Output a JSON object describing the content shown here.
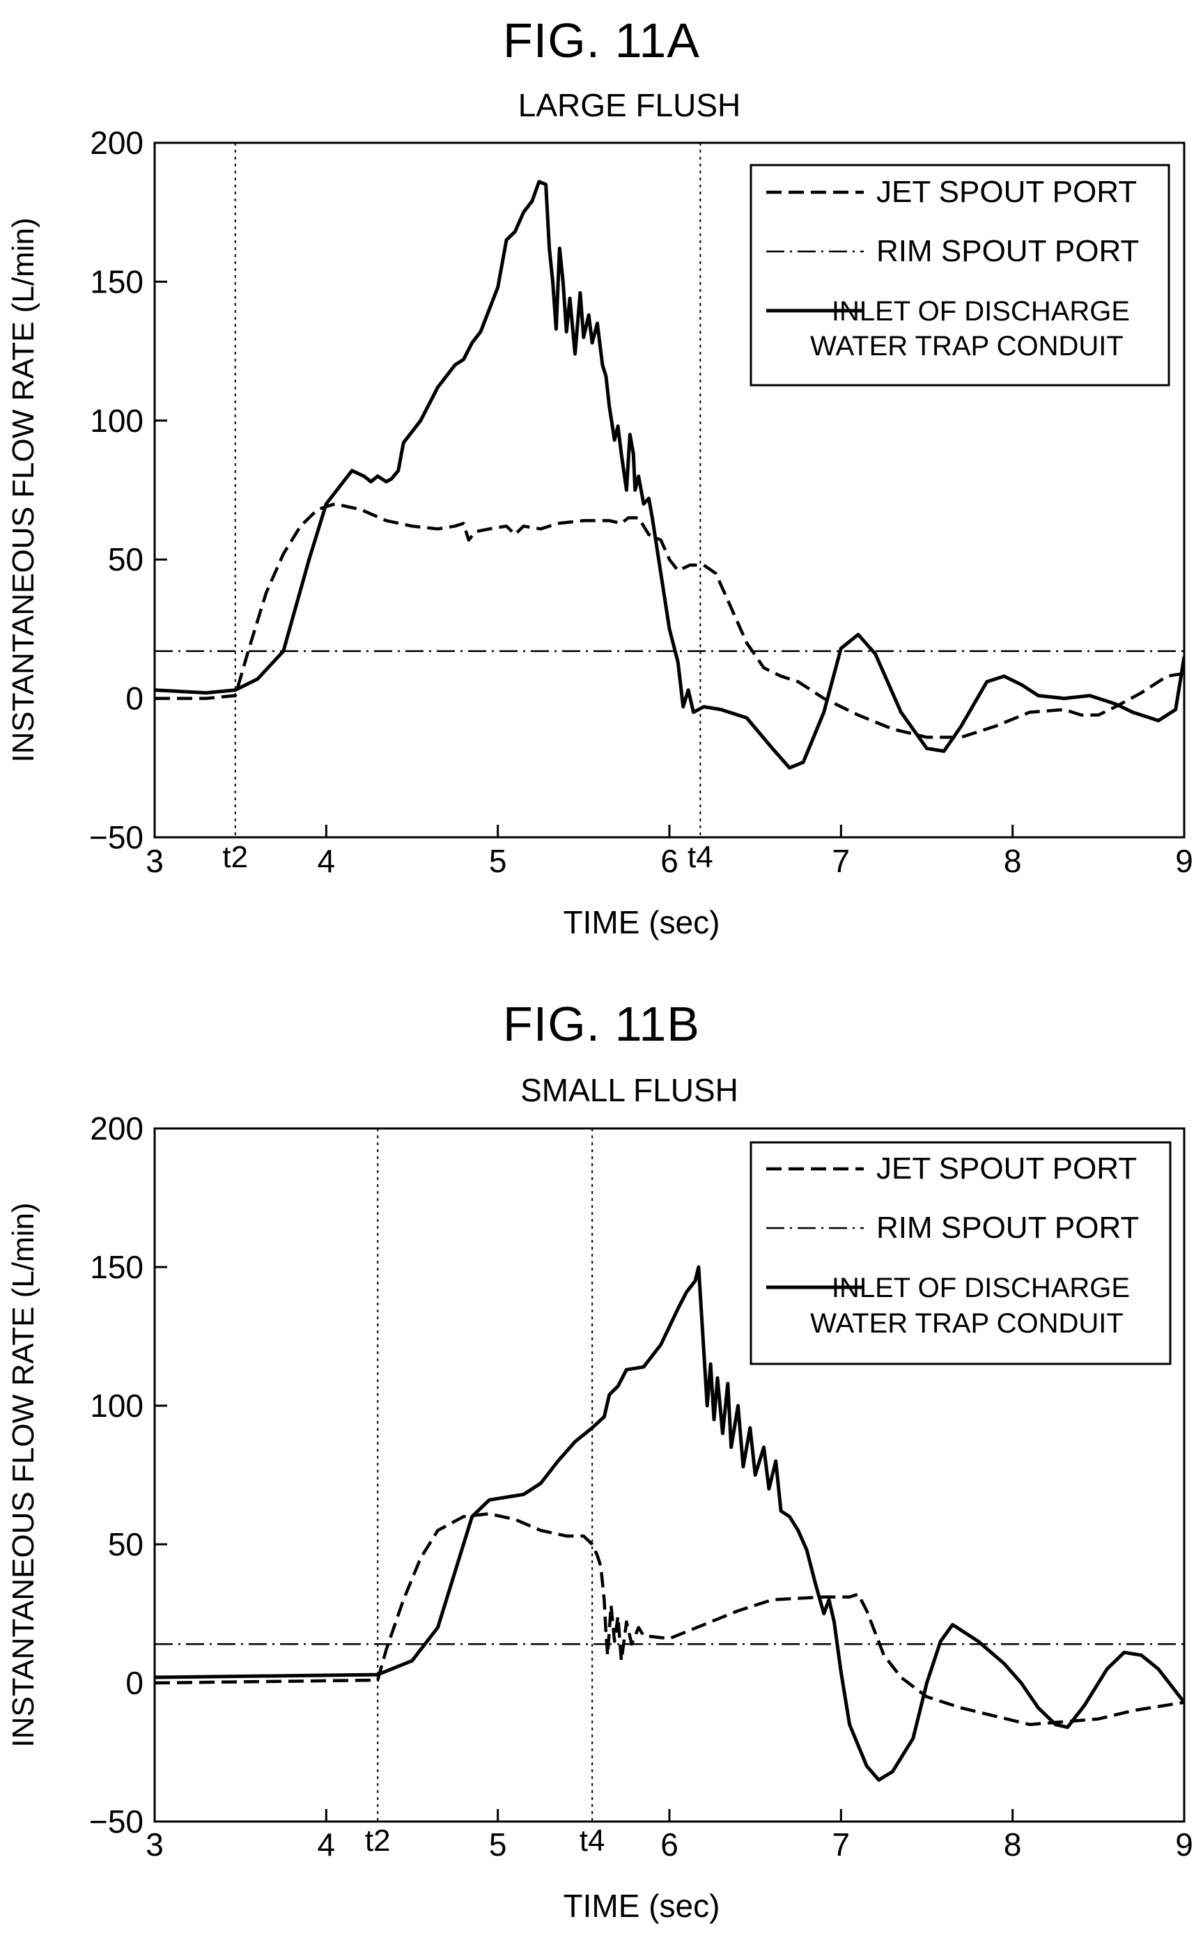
{
  "chart_data": [
    {
      "type": "line",
      "figure_label": "FIG. 11A",
      "title": "LARGE FLUSH",
      "xlabel": "TIME (sec)",
      "ylabel": "INSTANTANEOUS FLOW RATE (L/min)",
      "xlim": [
        3,
        9
      ],
      "ylim": [
        -50,
        200
      ],
      "xticks": [
        "3",
        "4",
        "5",
        "6",
        "7",
        "8",
        "9"
      ],
      "yticks": [
        "200",
        "150",
        "100",
        "50",
        "0",
        "−50"
      ],
      "markers": [
        {
          "label": "t2",
          "x": 3.47
        },
        {
          "label": "t4",
          "x": 6.18
        }
      ],
      "legend_placement": "top-right",
      "legend": [
        "JET SPOUT PORT",
        "RIM SPOUT PORT",
        "INLET OF DISCHARGE WATER TRAP CONDUIT"
      ],
      "series": [
        {
          "name": "JET SPOUT PORT",
          "style": "dashed",
          "points": [
            [
              3.0,
              0
            ],
            [
              3.3,
              0
            ],
            [
              3.47,
              1
            ],
            [
              3.55,
              18
            ],
            [
              3.65,
              38
            ],
            [
              3.75,
              52
            ],
            [
              3.85,
              62
            ],
            [
              3.95,
              68
            ],
            [
              4.05,
              70
            ],
            [
              4.2,
              68
            ],
            [
              4.35,
              64
            ],
            [
              4.5,
              62
            ],
            [
              4.65,
              61
            ],
            [
              4.75,
              62
            ],
            [
              4.8,
              63
            ],
            [
              4.83,
              57
            ],
            [
              4.87,
              60
            ],
            [
              4.95,
              61
            ],
            [
              5.05,
              62
            ],
            [
              5.1,
              59
            ],
            [
              5.15,
              62
            ],
            [
              5.25,
              61
            ],
            [
              5.35,
              63
            ],
            [
              5.5,
              64
            ],
            [
              5.65,
              64
            ],
            [
              5.72,
              63
            ],
            [
              5.76,
              65
            ],
            [
              5.82,
              65
            ],
            [
              5.88,
              59
            ],
            [
              5.95,
              57
            ],
            [
              6.0,
              50
            ],
            [
              6.05,
              46
            ],
            [
              6.12,
              48
            ],
            [
              6.2,
              48
            ],
            [
              6.27,
              45
            ],
            [
              6.35,
              34
            ],
            [
              6.45,
              20
            ],
            [
              6.55,
              11
            ],
            [
              6.65,
              8
            ],
            [
              6.75,
              6
            ],
            [
              6.9,
              0
            ],
            [
              7.1,
              -6
            ],
            [
              7.3,
              -11
            ],
            [
              7.5,
              -14
            ],
            [
              7.7,
              -14
            ],
            [
              7.9,
              -10
            ],
            [
              8.1,
              -5
            ],
            [
              8.3,
              -4
            ],
            [
              8.4,
              -6
            ],
            [
              8.5,
              -6
            ],
            [
              8.6,
              -3
            ],
            [
              8.75,
              2
            ],
            [
              8.9,
              8
            ],
            [
              9.0,
              9
            ]
          ]
        },
        {
          "name": "RIM SPOUT PORT",
          "style": "dashdot",
          "points": [
            [
              3.0,
              17
            ],
            [
              9.0,
              17
            ]
          ]
        },
        {
          "name": "INLET OF DISCHARGE WATER TRAP CONDUIT",
          "style": "solid",
          "points": [
            [
              3.0,
              3
            ],
            [
              3.3,
              2
            ],
            [
              3.47,
              3
            ],
            [
              3.6,
              7
            ],
            [
              3.75,
              17
            ],
            [
              3.9,
              50
            ],
            [
              4.0,
              70
            ],
            [
              4.1,
              78
            ],
            [
              4.15,
              82
            ],
            [
              4.22,
              80
            ],
            [
              4.26,
              78
            ],
            [
              4.3,
              80
            ],
            [
              4.35,
              78
            ],
            [
              4.38,
              79
            ],
            [
              4.42,
              82
            ],
            [
              4.45,
              92
            ],
            [
              4.55,
              100
            ],
            [
              4.65,
              112
            ],
            [
              4.75,
              120
            ],
            [
              4.8,
              122
            ],
            [
              4.85,
              128
            ],
            [
              4.9,
              132
            ],
            [
              5.0,
              148
            ],
            [
              5.05,
              165
            ],
            [
              5.1,
              168
            ],
            [
              5.15,
              175
            ],
            [
              5.2,
              179
            ],
            [
              5.24,
              186
            ],
            [
              5.28,
              185
            ],
            [
              5.3,
              162
            ],
            [
              5.32,
              150
            ],
            [
              5.34,
              133
            ],
            [
              5.36,
              162
            ],
            [
              5.38,
              150
            ],
            [
              5.4,
              132
            ],
            [
              5.42,
              144
            ],
            [
              5.45,
              124
            ],
            [
              5.48,
              146
            ],
            [
              5.5,
              130
            ],
            [
              5.53,
              138
            ],
            [
              5.55,
              128
            ],
            [
              5.58,
              135
            ],
            [
              5.61,
              120
            ],
            [
              5.63,
              116
            ],
            [
              5.65,
              105
            ],
            [
              5.68,
              93
            ],
            [
              5.7,
              98
            ],
            [
              5.72,
              88
            ],
            [
              5.75,
              75
            ],
            [
              5.77,
              95
            ],
            [
              5.79,
              88
            ],
            [
              5.8,
              75
            ],
            [
              5.82,
              80
            ],
            [
              5.85,
              70
            ],
            [
              5.88,
              72
            ],
            [
              5.9,
              65
            ],
            [
              5.95,
              45
            ],
            [
              6.0,
              25
            ],
            [
              6.05,
              13
            ],
            [
              6.08,
              -3
            ],
            [
              6.11,
              3
            ],
            [
              6.14,
              -5
            ],
            [
              6.2,
              -3
            ],
            [
              6.3,
              -4
            ],
            [
              6.45,
              -7
            ],
            [
              6.6,
              -18
            ],
            [
              6.7,
              -25
            ],
            [
              6.78,
              -23
            ],
            [
              6.9,
              -5
            ],
            [
              7.0,
              18
            ],
            [
              7.1,
              23
            ],
            [
              7.2,
              16
            ],
            [
              7.35,
              -5
            ],
            [
              7.5,
              -18
            ],
            [
              7.6,
              -19
            ],
            [
              7.7,
              -10
            ],
            [
              7.85,
              6
            ],
            [
              7.95,
              8
            ],
            [
              8.05,
              5
            ],
            [
              8.15,
              1
            ],
            [
              8.3,
              0
            ],
            [
              8.45,
              1
            ],
            [
              8.6,
              -2
            ],
            [
              8.7,
              -5
            ],
            [
              8.85,
              -8
            ],
            [
              8.95,
              -4
            ],
            [
              9.0,
              15
            ]
          ]
        }
      ]
    },
    {
      "type": "line",
      "figure_label": "FIG. 11B",
      "title": "SMALL FLUSH",
      "xlabel": "TIME (sec)",
      "ylabel": "INSTANTANEOUS FLOW RATE (L/min)",
      "xlim": [
        3,
        9
      ],
      "ylim": [
        -50,
        200
      ],
      "xticks": [
        "3",
        "4",
        "5",
        "6",
        "7",
        "8",
        "9"
      ],
      "yticks": [
        "200",
        "150",
        "100",
        "50",
        "0",
        "−50"
      ],
      "markers": [
        {
          "label": "t2",
          "x": 4.3
        },
        {
          "label": "t4",
          "x": 5.55
        }
      ],
      "legend_placement": "top-right",
      "legend": [
        "JET SPOUT PORT",
        "RIM SPOUT PORT",
        "INLET OF DISCHARGE WATER TRAP CONDUIT"
      ],
      "series": [
        {
          "name": "JET SPOUT PORT",
          "style": "dashed",
          "points": [
            [
              3.0,
              0
            ],
            [
              4.3,
              1
            ],
            [
              4.35,
              12
            ],
            [
              4.45,
              30
            ],
            [
              4.55,
              45
            ],
            [
              4.65,
              55
            ],
            [
              4.8,
              60
            ],
            [
              4.95,
              61
            ],
            [
              5.1,
              59
            ],
            [
              5.25,
              55
            ],
            [
              5.4,
              53
            ],
            [
              5.5,
              53
            ],
            [
              5.55,
              50
            ],
            [
              5.58,
              46
            ],
            [
              5.6,
              42
            ],
            [
              5.62,
              30
            ],
            [
              5.63,
              18
            ],
            [
              5.64,
              10
            ],
            [
              5.66,
              28
            ],
            [
              5.68,
              15
            ],
            [
              5.7,
              24
            ],
            [
              5.72,
              8
            ],
            [
              5.75,
              22
            ],
            [
              5.78,
              14
            ],
            [
              5.82,
              20
            ],
            [
              5.85,
              17
            ],
            [
              6.0,
              16
            ],
            [
              6.2,
              21
            ],
            [
              6.4,
              26
            ],
            [
              6.6,
              30
            ],
            [
              6.9,
              31
            ],
            [
              7.05,
              31
            ],
            [
              7.1,
              32
            ],
            [
              7.15,
              26
            ],
            [
              7.25,
              10
            ],
            [
              7.35,
              2
            ],
            [
              7.5,
              -5
            ],
            [
              7.7,
              -9
            ],
            [
              7.9,
              -12
            ],
            [
              8.1,
              -15
            ],
            [
              8.3,
              -14
            ],
            [
              8.5,
              -13
            ],
            [
              8.7,
              -10
            ],
            [
              9.0,
              -7
            ]
          ]
        },
        {
          "name": "RIM SPOUT PORT",
          "style": "dashdot",
          "points": [
            [
              3.0,
              14
            ],
            [
              9.0,
              14
            ]
          ]
        },
        {
          "name": "INLET OF DISCHARGE WATER TRAP CONDUIT",
          "style": "solid",
          "points": [
            [
              3.0,
              2
            ],
            [
              4.3,
              3
            ],
            [
              4.5,
              8
            ],
            [
              4.65,
              20
            ],
            [
              4.75,
              40
            ],
            [
              4.85,
              60
            ],
            [
              4.95,
              66
            ],
            [
              5.05,
              67
            ],
            [
              5.15,
              68
            ],
            [
              5.25,
              72
            ],
            [
              5.35,
              80
            ],
            [
              5.45,
              87
            ],
            [
              5.55,
              92
            ],
            [
              5.62,
              96
            ],
            [
              5.65,
              104
            ],
            [
              5.7,
              107
            ],
            [
              5.75,
              113
            ],
            [
              5.85,
              114
            ],
            [
              5.95,
              122
            ],
            [
              6.05,
              135
            ],
            [
              6.1,
              141
            ],
            [
              6.15,
              145
            ],
            [
              6.17,
              150
            ],
            [
              6.2,
              120
            ],
            [
              6.22,
              100
            ],
            [
              6.24,
              115
            ],
            [
              6.26,
              95
            ],
            [
              6.28,
              110
            ],
            [
              6.31,
              90
            ],
            [
              6.34,
              108
            ],
            [
              6.36,
              85
            ],
            [
              6.4,
              100
            ],
            [
              6.43,
              78
            ],
            [
              6.47,
              92
            ],
            [
              6.5,
              75
            ],
            [
              6.55,
              85
            ],
            [
              6.58,
              70
            ],
            [
              6.62,
              80
            ],
            [
              6.65,
              62
            ],
            [
              6.7,
              60
            ],
            [
              6.75,
              55
            ],
            [
              6.8,
              48
            ],
            [
              6.85,
              36
            ],
            [
              6.9,
              25
            ],
            [
              6.93,
              30
            ],
            [
              6.96,
              22
            ],
            [
              7.0,
              4
            ],
            [
              7.05,
              -15
            ],
            [
              7.15,
              -30
            ],
            [
              7.22,
              -35
            ],
            [
              7.3,
              -32
            ],
            [
              7.42,
              -20
            ],
            [
              7.5,
              0
            ],
            [
              7.58,
              15
            ],
            [
              7.65,
              21
            ],
            [
              7.8,
              15
            ],
            [
              7.95,
              7
            ],
            [
              8.05,
              0
            ],
            [
              8.15,
              -9
            ],
            [
              8.25,
              -15
            ],
            [
              8.32,
              -16
            ],
            [
              8.42,
              -8
            ],
            [
              8.55,
              5
            ],
            [
              8.65,
              11
            ],
            [
              8.75,
              10
            ],
            [
              8.85,
              5
            ],
            [
              9.0,
              -7
            ]
          ]
        }
      ]
    }
  ]
}
